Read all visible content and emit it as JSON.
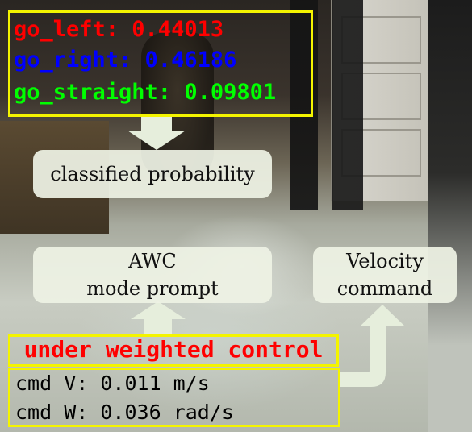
{
  "probabilities": {
    "go_left": "go_left: 0.44013",
    "go_right": "go_right: 0.46186",
    "go_straight": "go_straight: 0.09801"
  },
  "panels": {
    "classified": "classified probability",
    "awc_line1": "AWC",
    "awc_line2": "mode prompt",
    "velocity_line1": "Velocity",
    "velocity_line2": "command"
  },
  "status": "under weighted control",
  "commands": {
    "v": "cmd V: 0.011 m/s",
    "w": "cmd W: 0.036 rad/s"
  },
  "colors": {
    "highlight_box": "#f4f400",
    "left": "#ff0000",
    "right": "#0000ff",
    "straight": "#00ff00",
    "arrow": "#e6eedc"
  }
}
